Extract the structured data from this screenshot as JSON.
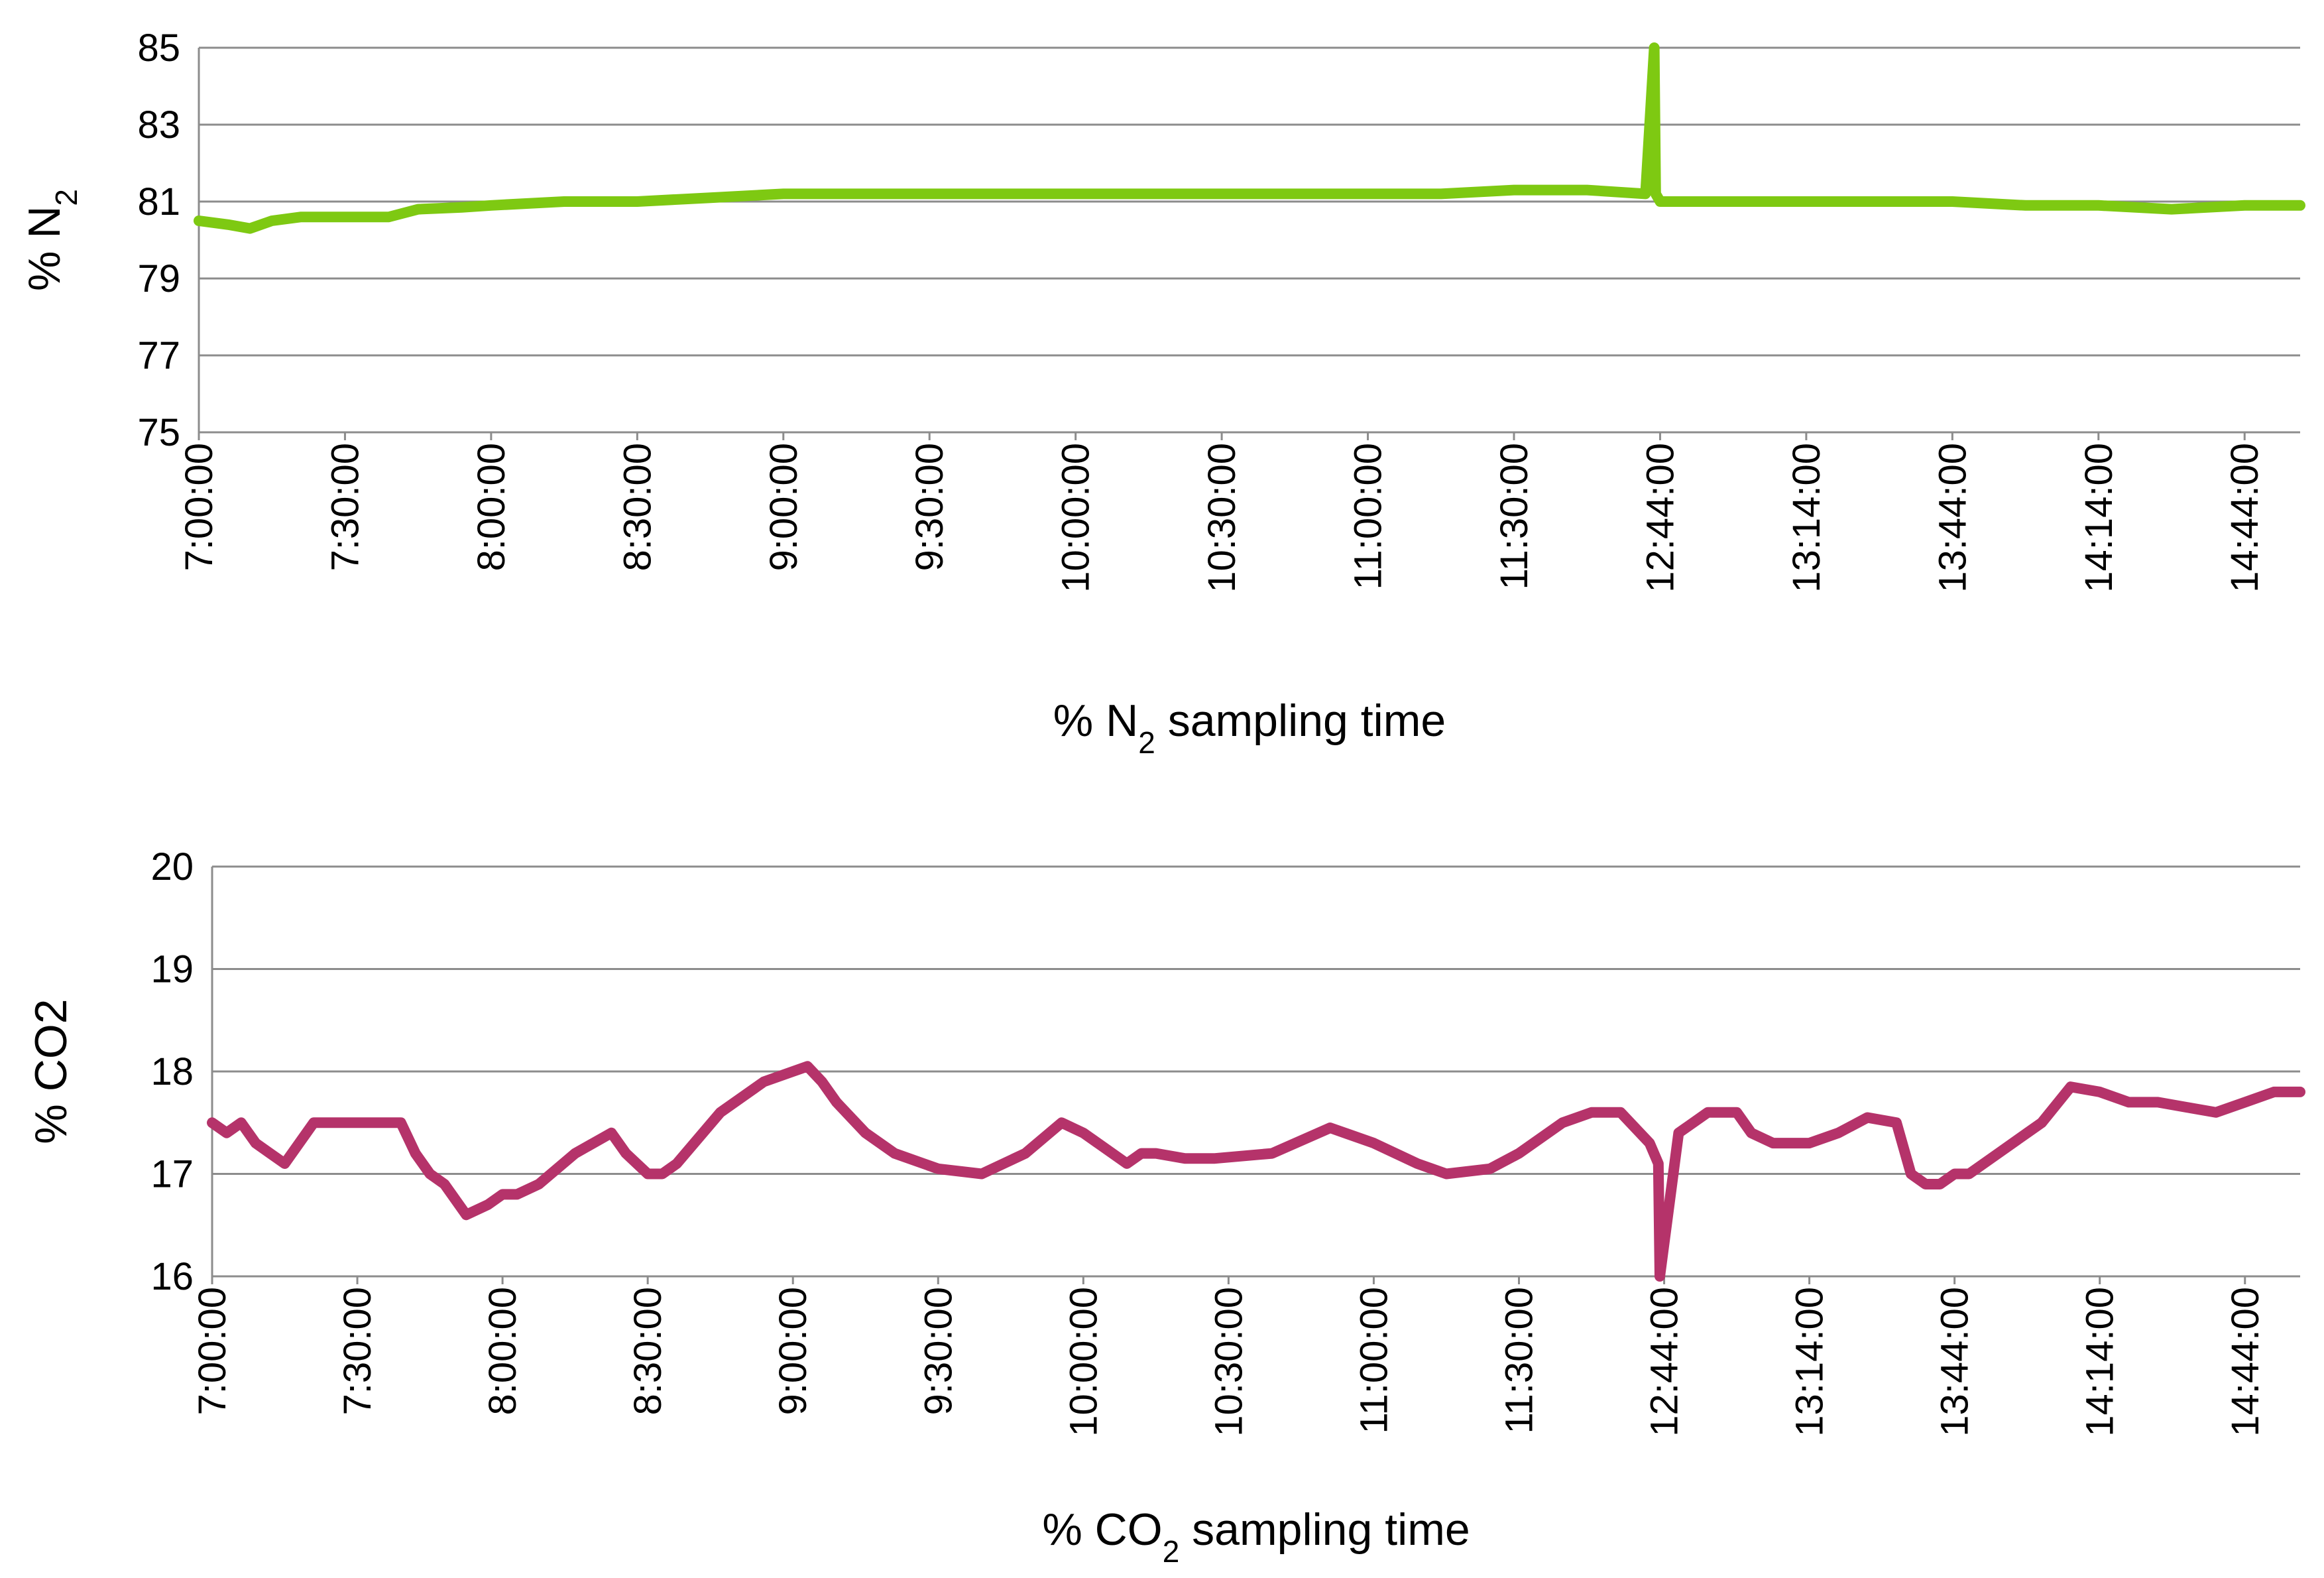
{
  "chart_data": [
    {
      "type": "line",
      "title": "",
      "xlabel_parts": [
        "% N",
        "2",
        " sampling time"
      ],
      "ylabel_parts": [
        "% N",
        "2"
      ],
      "ylim": [
        75,
        85
      ],
      "yticks": [
        75,
        77,
        79,
        81,
        83,
        85
      ],
      "grid": true,
      "legend": "none",
      "x_tick_labels": [
        "7:00:00",
        "7:30:00",
        "8:00:00",
        "8:30:00",
        "9:00:00",
        "9:30:00",
        "10:00:00",
        "10:30:00",
        "11:00:00",
        "11:30:00",
        "12:44:00",
        "13:14:00",
        "13:44:00",
        "14:14:00",
        "14:44:00"
      ],
      "x_range_index": [
        0,
        14.38
      ],
      "series": [
        {
          "color": "#7ec912",
          "x": [
            0,
            0.2,
            0.35,
            0.5,
            0.7,
            1.0,
            1.3,
            1.5,
            1.8,
            2.0,
            2.5,
            3.0,
            3.5,
            4.0,
            4.5,
            5.0,
            5.5,
            6.0,
            6.5,
            7.0,
            7.5,
            8.0,
            8.5,
            9.0,
            9.5,
            9.9,
            9.96,
            9.97,
            10.0,
            10.5,
            11.0,
            11.5,
            12.0,
            12.5,
            13.0,
            13.5,
            14.0,
            14.38
          ],
          "y": [
            80.5,
            80.4,
            80.3,
            80.5,
            80.6,
            80.6,
            80.6,
            80.8,
            80.85,
            80.9,
            81.0,
            81.0,
            81.1,
            81.2,
            81.2,
            81.2,
            81.2,
            81.2,
            81.2,
            81.2,
            81.2,
            81.2,
            81.2,
            81.3,
            81.3,
            81.2,
            85.0,
            81.2,
            81.0,
            81.0,
            81.0,
            81.0,
            81.0,
            80.9,
            80.9,
            80.8,
            80.9,
            80.9
          ]
        }
      ]
    },
    {
      "type": "line",
      "title": "",
      "xlabel_parts": [
        "% CO",
        "2",
        " sampling time"
      ],
      "ylabel_parts": [
        "% CO2"
      ],
      "ylim": [
        16,
        20
      ],
      "yticks": [
        16,
        17,
        18,
        19,
        20
      ],
      "grid": true,
      "legend": "none",
      "x_tick_labels": [
        "7:00:00",
        "7:30:00",
        "8:00:00",
        "8:30:00",
        "9:00:00",
        "9:30:00",
        "10:00:00",
        "10:30:00",
        "11:00:00",
        "11:30:00",
        "12:44:00",
        "13:14:00",
        "13:44:00",
        "14:14:00",
        "14:44:00"
      ],
      "x_range_index": [
        0,
        14.38
      ],
      "series": [
        {
          "color": "#b5336a",
          "x": [
            0,
            0.1,
            0.2,
            0.3,
            0.4,
            0.5,
            0.6,
            0.7,
            0.8,
            1.0,
            1.2,
            1.3,
            1.4,
            1.5,
            1.6,
            1.75,
            1.9,
            2.0,
            2.1,
            2.25,
            2.5,
            2.75,
            2.85,
            3.0,
            3.1,
            3.2,
            3.5,
            3.8,
            4.0,
            4.1,
            4.2,
            4.3,
            4.5,
            4.7,
            5.0,
            5.3,
            5.6,
            5.85,
            6.0,
            6.3,
            6.4,
            6.5,
            6.7,
            6.9,
            7.3,
            7.7,
            8.0,
            8.3,
            8.5,
            8.8,
            9.0,
            9.3,
            9.5,
            9.7,
            9.9,
            9.96,
            9.97,
            10.1,
            10.3,
            10.5,
            10.6,
            10.75,
            11.0,
            11.2,
            11.4,
            11.6,
            11.7,
            11.8,
            11.9,
            12.0,
            12.1,
            12.3,
            12.5,
            12.6,
            12.8,
            13.0,
            13.2,
            13.4,
            13.6,
            13.8,
            14.0,
            14.2,
            14.38
          ],
          "y": [
            17.5,
            17.4,
            17.5,
            17.3,
            17.2,
            17.1,
            17.3,
            17.5,
            17.5,
            17.5,
            17.5,
            17.5,
            17.2,
            17.0,
            16.9,
            16.6,
            16.7,
            16.8,
            16.8,
            16.9,
            17.2,
            17.4,
            17.2,
            17.0,
            17.0,
            17.1,
            17.6,
            17.9,
            18.0,
            18.05,
            17.9,
            17.7,
            17.4,
            17.2,
            17.05,
            17.0,
            17.2,
            17.5,
            17.4,
            17.1,
            17.2,
            17.2,
            17.15,
            17.15,
            17.2,
            17.45,
            17.3,
            17.1,
            17.0,
            17.05,
            17.2,
            17.5,
            17.6,
            17.6,
            17.3,
            17.1,
            16.0,
            17.4,
            17.6,
            17.6,
            17.4,
            17.3,
            17.3,
            17.4,
            17.55,
            17.5,
            17.0,
            16.9,
            16.9,
            17.0,
            17.0,
            17.2,
            17.4,
            17.5,
            17.85,
            17.8,
            17.7,
            17.7,
            17.65,
            17.6,
            17.7,
            17.8,
            17.8
          ]
        }
      ]
    }
  ]
}
